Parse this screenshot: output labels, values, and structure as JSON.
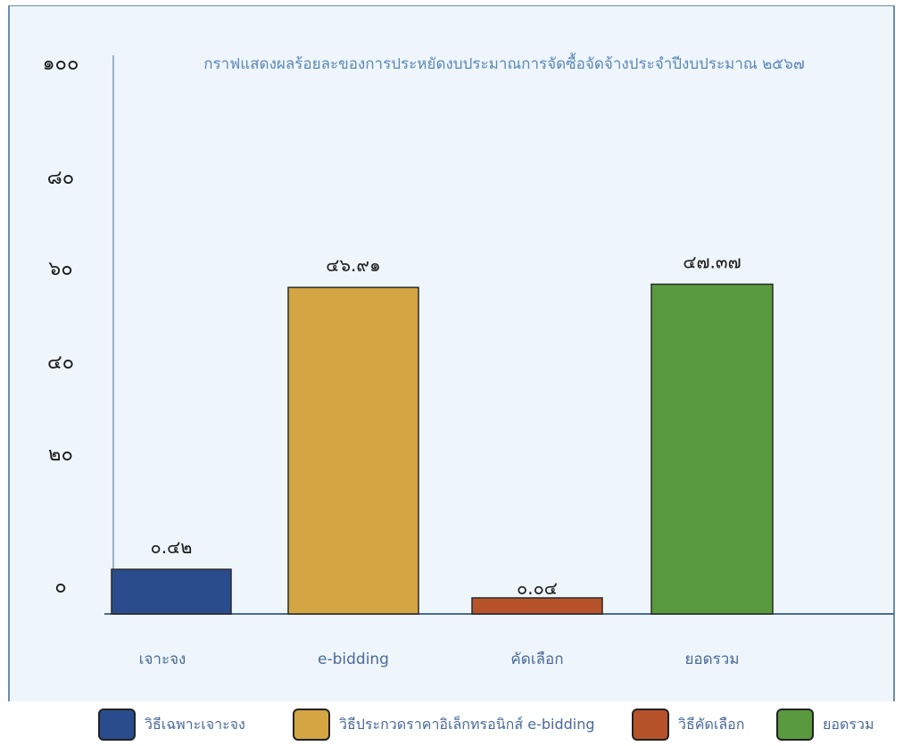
{
  "chart_data": {
    "type": "bar",
    "title": "กราฟแสดงผลร้อยละของการประหยัดงบประมาณการจัดซื้อจัดจ้างประจำปีงบประมาณ ๒๕๖๗",
    "xlabel": "",
    "ylabel": "",
    "ylim": [
      0,
      100
    ],
    "y_ticks": [
      {
        "value": 0,
        "label": "๐"
      },
      {
        "value": 20,
        "label": "๒๐"
      },
      {
        "value": 40,
        "label": "๔๐"
      },
      {
        "value": 60,
        "label": "๖๐"
      },
      {
        "value": 80,
        "label": "๘๐"
      },
      {
        "value": 100,
        "label": "๑๐๐"
      }
    ],
    "categories": [
      "เจาะจง",
      "e-bidding",
      "คัดเลือก",
      "ยอดรวม"
    ],
    "values": [
      0.42,
      46.91,
      0.04,
      47.37
    ],
    "data_labels": [
      "๐.๔๒",
      "๔๖.๙๑",
      "๐.๐๔",
      "๔๗.๓๗"
    ],
    "colors": [
      "#2b4c8c",
      "#d3a543",
      "#b6532b",
      "#5a9a3e"
    ],
    "legend": {
      "placement": "bottom",
      "entries": [
        {
          "label": "วิธีเฉพาะเจาะจง",
          "color": "#2b4c8c"
        },
        {
          "label": "วิธีประกวดราคาอิเล็กทรอนิกส์ e-bidding",
          "color": "#d3a543"
        },
        {
          "label": "วิธีคัดเลือก",
          "color": "#b6532b"
        },
        {
          "label": "ยอดรวม",
          "color": "#5a9a3e"
        }
      ]
    },
    "grid": false
  }
}
